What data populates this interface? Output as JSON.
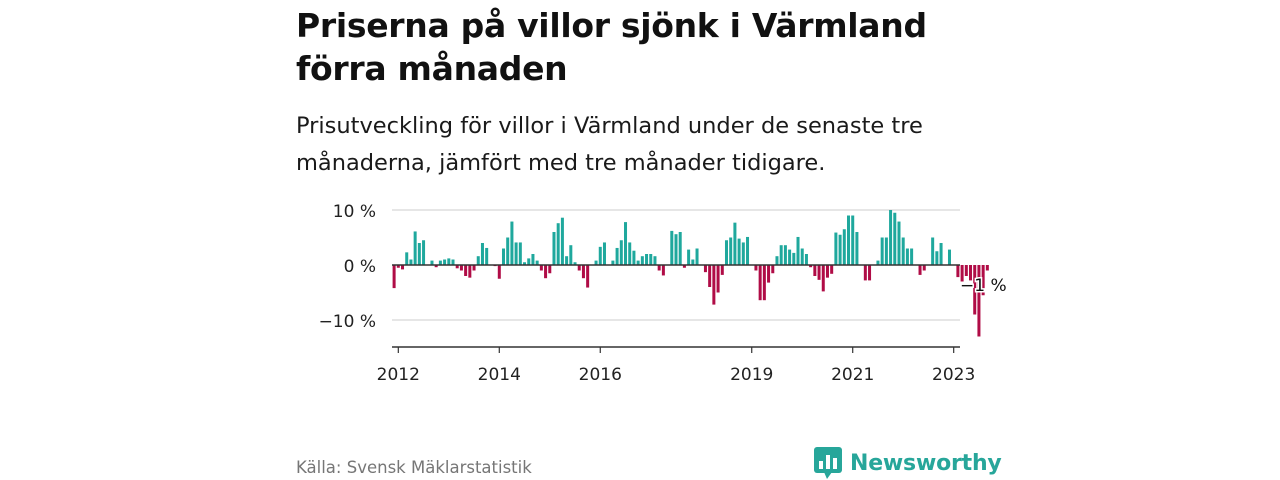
{
  "header": {
    "title": "Priserna på villor sjönk i Värmland förra månaden",
    "subtitle": "Prisutveckling för villor i Värmland under de senaste tre månaderna, jämfört med tre månader tidigare."
  },
  "footer": {
    "source": "Källa: Svensk Mäklarstatistik",
    "brand": "Newsworthy"
  },
  "colors": {
    "positive": "#1fa89d",
    "negative": "#b00c46",
    "brand": "#27a69a",
    "grid": "#cccccc",
    "axis": "#333333"
  },
  "chart_data": {
    "type": "bar",
    "x_unit": "month",
    "x_start": "2011-12",
    "x_end": "2023-02",
    "x_ticks": [
      "2012",
      "2014",
      "2016",
      "2019",
      "2021",
      "2023"
    ],
    "y_ticks": [
      {
        "value": 10,
        "label": "10 %"
      },
      {
        "value": 0,
        "label": "0 %"
      },
      {
        "value": -10,
        "label": "−10 %"
      }
    ],
    "ylim": [
      -15,
      10.5
    ],
    "grid": true,
    "annotation": {
      "label": "−1 %",
      "value": -1
    },
    "values": [
      -4.2,
      -0.5,
      -0.8,
      2.3,
      1.0,
      6.1,
      4.0,
      4.5,
      0.0,
      0.8,
      -0.4,
      0.8,
      1.0,
      1.2,
      1.0,
      -0.6,
      -1.0,
      -2.0,
      -2.3,
      -1.0,
      1.6,
      4.0,
      3.1,
      0.0,
      -0.2,
      -2.5,
      3.0,
      5.0,
      7.9,
      4.1,
      4.1,
      0.5,
      1.2,
      2.0,
      0.8,
      -1.0,
      -2.4,
      -1.5,
      6.0,
      7.6,
      8.6,
      1.6,
      3.6,
      0.5,
      -1.0,
      -2.4,
      -4.1,
      0.0,
      0.8,
      3.3,
      4.1,
      0.0,
      0.8,
      3.1,
      4.5,
      7.8,
      4.1,
      2.6,
      0.8,
      1.6,
      2.0,
      2.0,
      1.6,
      -1.0,
      -1.9,
      0.0,
      6.2,
      5.6,
      6.0,
      -0.5,
      2.8,
      1.0,
      3.0,
      0.0,
      -1.3,
      -4.0,
      -7.2,
      -5.0,
      -1.8,
      4.5,
      5.0,
      7.7,
      4.8,
      4.1,
      5.1,
      0.0,
      -1.0,
      -6.4,
      -6.4,
      -3.2,
      -1.5,
      1.6,
      3.6,
      3.6,
      2.8,
      2.2,
      5.1,
      3.0,
      2.0,
      -0.4,
      -2.0,
      -2.7,
      -4.8,
      -2.3,
      -1.6,
      5.9,
      5.5,
      6.5,
      9.0,
      9.0,
      6.0,
      0.0,
      -2.8,
      -2.8,
      0.0,
      0.8,
      5.0,
      5.0,
      10.0,
      9.5,
      7.9,
      5.0,
      3.0,
      3.0,
      0.0,
      -1.8,
      -1.0,
      0.0,
      5.0,
      2.5,
      4.0,
      0.0,
      2.8,
      0.0,
      -2.2,
      -3.0,
      -2.0,
      -2.8,
      -9.0,
      -13.0,
      -5.5,
      -1.0
    ]
  }
}
